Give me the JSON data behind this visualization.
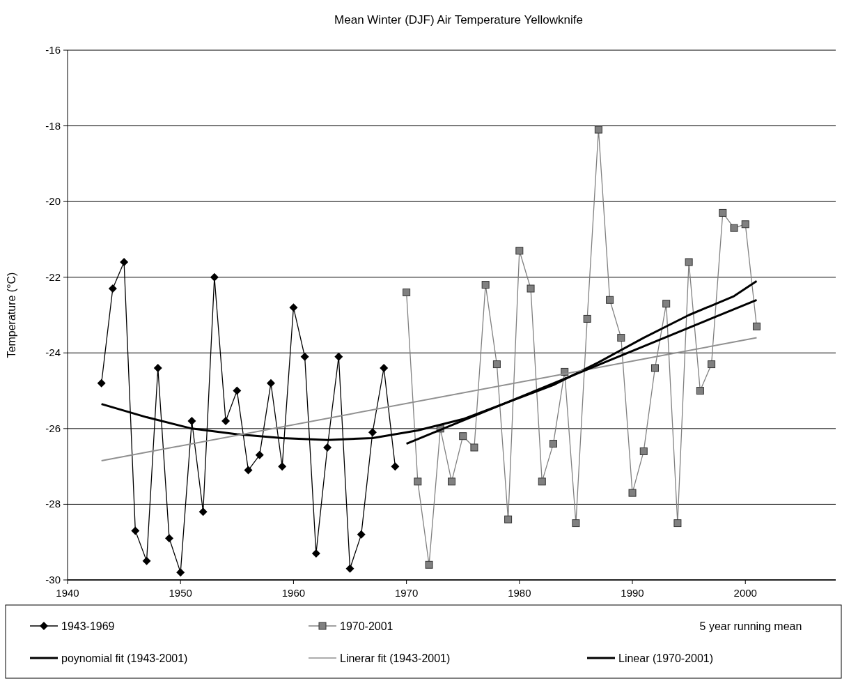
{
  "chart_data": {
    "type": "line",
    "title": "Mean Winter (DJF) Air Temperature Yellowknife",
    "ylabel": "Temperature (°C)",
    "xlim": [
      1940,
      2008
    ],
    "xticks": [
      1940,
      1950,
      1960,
      1970,
      1980,
      1990,
      2000
    ],
    "ylim": [
      -30,
      -16
    ],
    "yticks": [
      -30,
      -28,
      -26,
      -24,
      -22,
      -20,
      -18,
      -16
    ],
    "grid": "y",
    "legend": "bottom",
    "annotations": [
      "5 year running mean"
    ],
    "series": [
      {
        "name": "1943-1969",
        "color": "#000000",
        "marker": "diamond",
        "x": [
          1943,
          1944,
          1945,
          1946,
          1947,
          1948,
          1949,
          1950,
          1951,
          1952,
          1953,
          1954,
          1955,
          1956,
          1957,
          1958,
          1959,
          1960,
          1961,
          1962,
          1963,
          1964,
          1965,
          1966,
          1967,
          1968,
          1969
        ],
        "values": [
          -24.8,
          -22.3,
          -21.6,
          -28.7,
          -29.5,
          -24.4,
          -28.9,
          -29.8,
          -25.8,
          -28.2,
          -22.0,
          -25.8,
          -25.0,
          -27.1,
          -26.7,
          -24.8,
          -27.0,
          -22.8,
          -24.1,
          -29.3,
          -26.5,
          -24.1,
          -29.7,
          -28.8,
          -26.1,
          -24.4,
          -27.0
        ]
      },
      {
        "name": "1970-2001",
        "color": "#808080",
        "marker": "square",
        "x": [
          1970,
          1971,
          1972,
          1973,
          1974,
          1975,
          1976,
          1977,
          1978,
          1979,
          1980,
          1981,
          1982,
          1983,
          1984,
          1985,
          1986,
          1987,
          1988,
          1989,
          1990,
          1991,
          1992,
          1993,
          1994,
          1995,
          1996,
          1997,
          1998,
          1999,
          2000,
          2001
        ],
        "values": [
          -22.4,
          -27.4,
          -29.6,
          -26.0,
          -27.4,
          -26.2,
          -26.5,
          -22.2,
          -24.3,
          -28.4,
          -21.3,
          -22.3,
          -27.4,
          -26.4,
          -24.5,
          -28.5,
          -23.1,
          -18.1,
          -22.6,
          -23.6,
          -27.7,
          -26.6,
          -24.4,
          -22.7,
          -28.5,
          -21.6,
          -25.0,
          -24.3,
          -20.3,
          -20.7,
          -20.6,
          -23.3
        ]
      },
      {
        "name": "poynomial fit (1943-2001)",
        "color": "#000000",
        "marker": "none",
        "x": [
          1943,
          1947,
          1951,
          1955,
          1959,
          1963,
          1967,
          1971,
          1975,
          1979,
          1983,
          1987,
          1991,
          1995,
          1999,
          2001
        ],
        "values": [
          -25.35,
          -25.7,
          -26.0,
          -26.15,
          -26.25,
          -26.3,
          -26.25,
          -26.05,
          -25.75,
          -25.3,
          -24.85,
          -24.25,
          -23.6,
          -23.0,
          -22.5,
          -22.1
        ]
      },
      {
        "name": "Linerar fit (1943-2001)",
        "color": "#909090",
        "marker": "none",
        "x": [
          1943,
          2001
        ],
        "values": [
          -26.85,
          -23.6
        ]
      },
      {
        "name": "Linear (1970-2001)",
        "color": "#000000",
        "marker": "none",
        "x": [
          1970,
          2001
        ],
        "values": [
          -26.4,
          -22.6
        ]
      }
    ]
  }
}
